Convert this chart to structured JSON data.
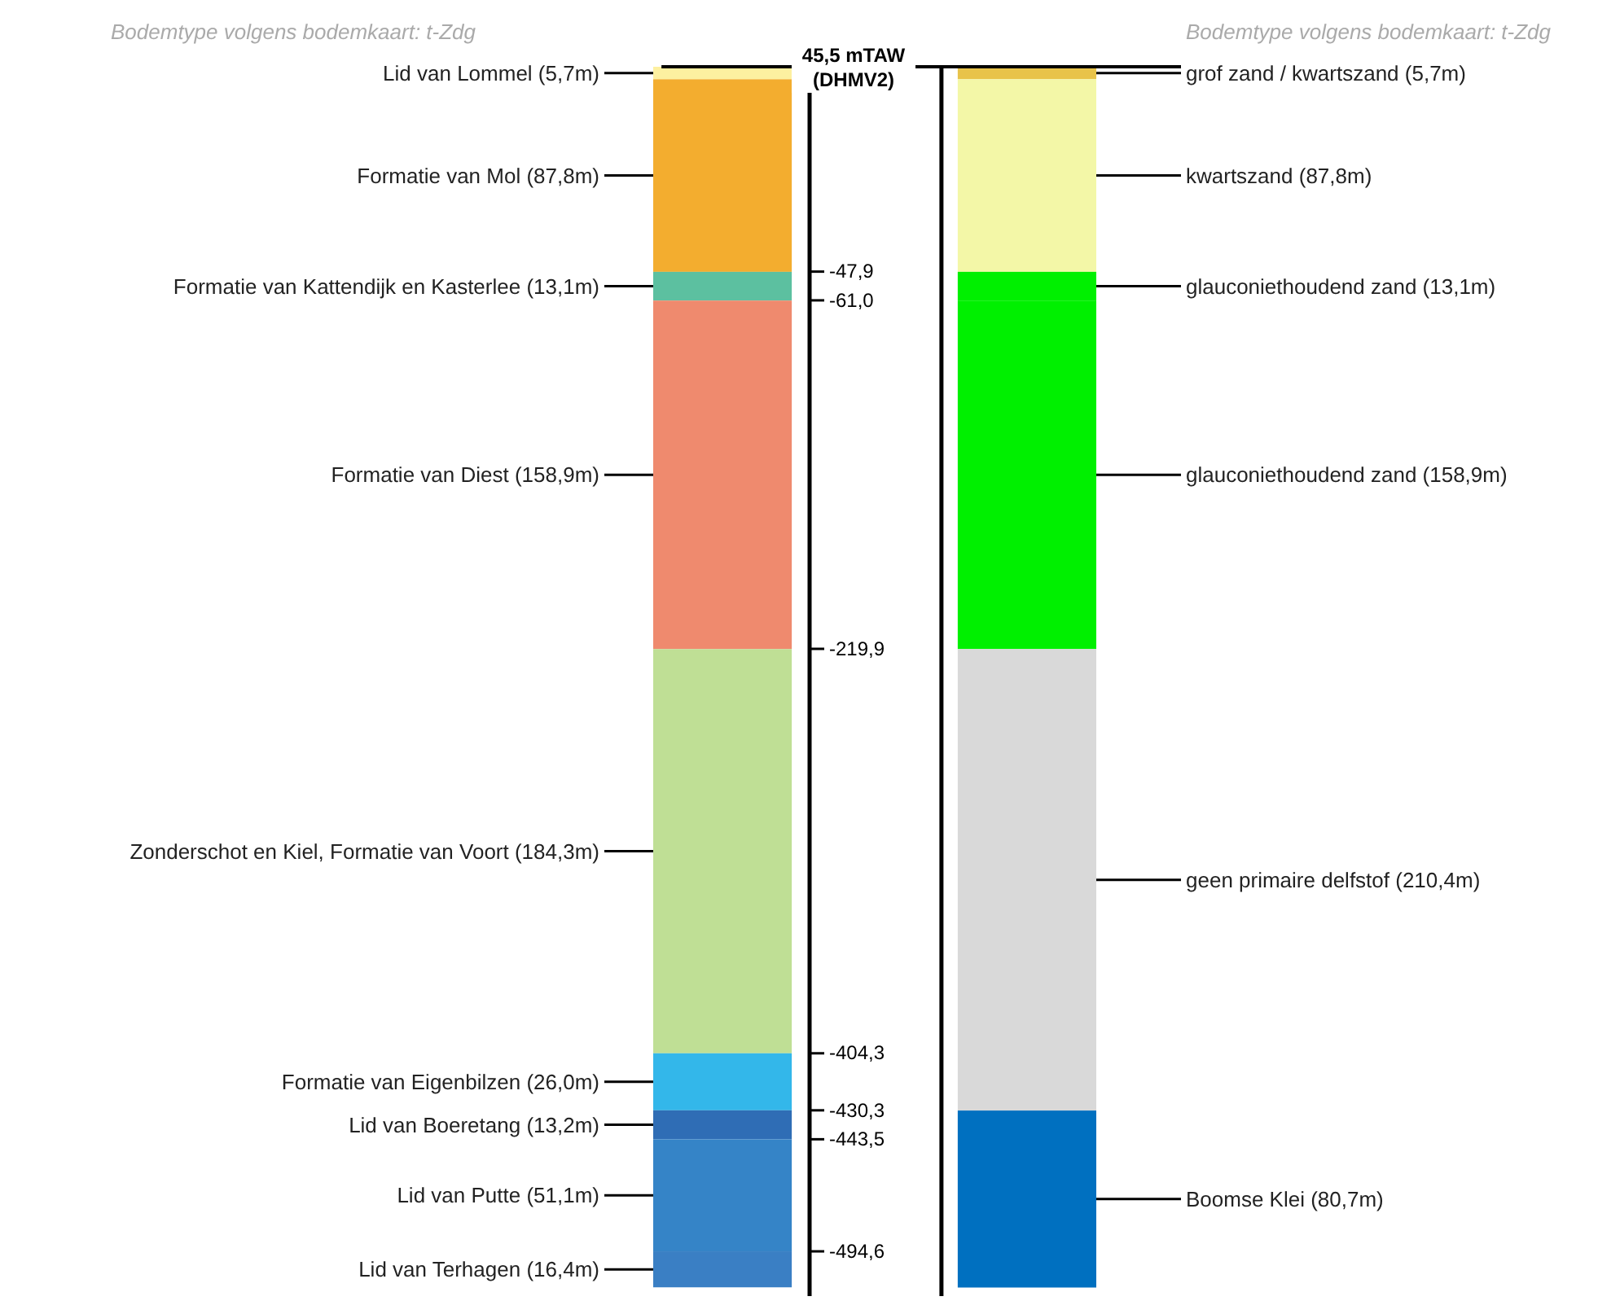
{
  "chart_data": {
    "type": "bar",
    "categories": [
      null,
      null
    ],
    "ylim": [
      -515,
      45.5
    ],
    "yticks": [
      {
        "value": 45.5,
        "label": "45,5 mTAW (DHMV2)"
      },
      {
        "value": -47.9,
        "label": "-47,9"
      },
      {
        "value": -61.0,
        "label": "-61,0"
      },
      {
        "value": -219.9,
        "label": "-219,9"
      },
      {
        "value": -404.3,
        "label": "-404,3"
      },
      {
        "value": -430.3,
        "label": "-430,3"
      },
      {
        "value": -443.5,
        "label": "-443,5"
      },
      {
        "value": -494.6,
        "label": "-494,6"
      }
    ],
    "annotations": [
      "Bodemtype volgens bodemkaart: t-Zdg",
      "Bodemtype volgens bodemkaart: t-Zdg"
    ],
    "series": [
      {
        "name": "Lid van Lommel (5,7m)",
        "color": "#fdf0a0",
        "base": [
          39.8,
          null
        ],
        "values": [
          5.7,
          null
        ]
      },
      {
        "name": "Formatie van Mol (87,8m)",
        "color": "#f3ad2f",
        "base": [
          -48.0,
          null
        ],
        "values": [
          87.8,
          null
        ]
      },
      {
        "name": "Formatie van Kattendijk en Kasterlee (13,1m)",
        "color": "#5cc0a0",
        "base": [
          -61.1,
          null
        ],
        "values": [
          13.1,
          null
        ]
      },
      {
        "name": "Formatie van Diest (158,9m)",
        "color": "#ef8a6e",
        "base": [
          -220.0,
          null
        ],
        "values": [
          158.9,
          null
        ]
      },
      {
        "name": "Zonderschot en Kiel, Formatie van Voort (184,3m)",
        "color": "#bfdf95",
        "base": [
          -404.3,
          null
        ],
        "values": [
          184.3,
          null
        ]
      },
      {
        "name": "Formatie van Eigenbilzen (26,0m)",
        "color": "#33b7ea",
        "base": [
          -430.3,
          null
        ],
        "values": [
          26.0,
          null
        ]
      },
      {
        "name": "Lid van Boeretang (13,2m)",
        "color": "#2f6db5",
        "base": [
          -443.5,
          null
        ],
        "values": [
          13.2,
          null
        ]
      },
      {
        "name": "Lid van Putte (51,1m)",
        "color": "#3584c7",
        "base": [
          -494.6,
          null
        ],
        "values": [
          51.1,
          null
        ]
      },
      {
        "name": "Lid van Terhagen (16,4m)",
        "color": "#3a7fc4",
        "base": [
          -511.0,
          null
        ],
        "values": [
          16.4,
          null
        ]
      },
      {
        "name": "grof zand / kwartszand (5,7m)",
        "color": "#e8c34a",
        "base": [
          null,
          39.8
        ],
        "values": [
          null,
          5.7
        ]
      },
      {
        "name": "kwartszand (87,8m)",
        "color": "#f3f7a7",
        "base": [
          null,
          -48.0
        ],
        "values": [
          null,
          87.8
        ]
      },
      {
        "name": "glauconiethoudend zand (13,1m)",
        "color": "#00f000",
        "base": [
          null,
          -61.1
        ],
        "values": [
          null,
          13.1
        ]
      },
      {
        "name": "glauconiethoudend zand (158,9m)",
        "color": "#00f000",
        "base": [
          null,
          -220.0
        ],
        "values": [
          null,
          158.9
        ]
      },
      {
        "name": "geen primaire delfstof (210,4m)",
        "color": "#d9d9d9",
        "base": [
          null,
          -430.4
        ],
        "values": [
          null,
          210.4
        ]
      },
      {
        "name": "Boomse Klei (80,7m)",
        "color": "#0070c0",
        "base": [
          null,
          -511.1
        ],
        "values": [
          null,
          80.7
        ]
      }
    ]
  }
}
